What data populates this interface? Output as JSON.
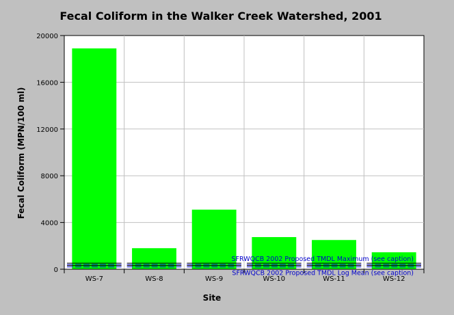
{
  "chart_data": {
    "type": "bar",
    "title": "Fecal Coliform in the Walker Creek Watershed, 2001",
    "xlabel": "Site",
    "ylabel": "Fecal Coliform (MPN/100 ml)",
    "categories": [
      "WS-7",
      "WS-8",
      "WS-9",
      "WS-10",
      "WS-11",
      "WS-12"
    ],
    "values": [
      18900,
      1800,
      5100,
      2750,
      2500,
      1450
    ],
    "ylim": [
      0,
      20000
    ],
    "yticks": [
      0,
      4000,
      8000,
      12000,
      16000,
      20000
    ],
    "grid": true,
    "colors": {
      "background": "#c0c0c0",
      "plot_area": "#ffffff",
      "bar": "#00ff00",
      "grid": "#c0c0c0",
      "reference_line": "#0000cc"
    },
    "reference_lines": [
      {
        "label": "SFRWQCB 2002 Proposed TMDL Maximum (see caption)",
        "value": 400
      },
      {
        "label": "SFRWQCB 2002 Proposed TMDL Log Mean (see caption)",
        "value": 200
      }
    ]
  }
}
